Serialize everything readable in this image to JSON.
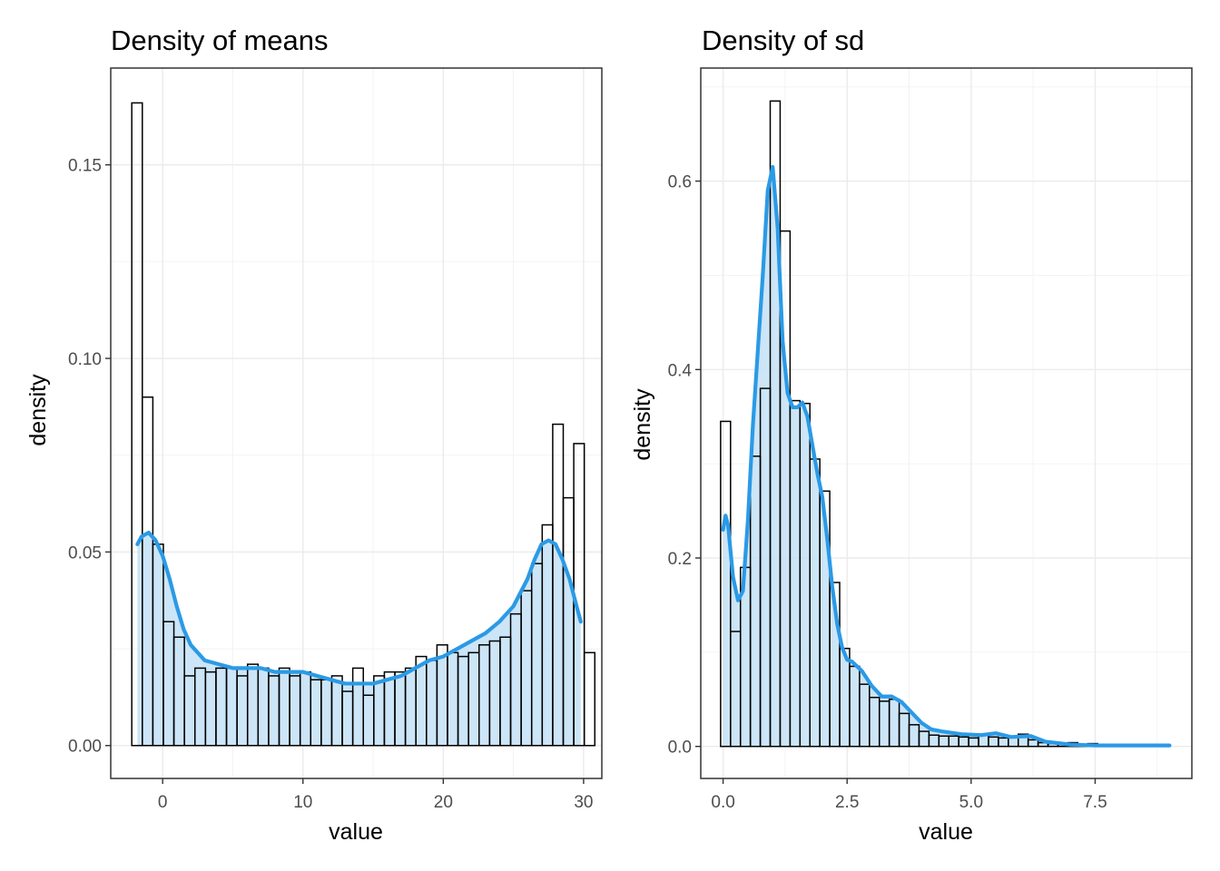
{
  "chart_data": [
    {
      "type": "bar",
      "title": "Density of means",
      "xlabel": "value",
      "ylabel": "density",
      "xlim": [
        -3.7,
        31.3
      ],
      "ylim": [
        -0.0085,
        0.175
      ],
      "x_ticks": [
        0,
        10,
        20,
        30
      ],
      "x_tick_labels": [
        "0",
        "10",
        "20",
        "30"
      ],
      "y_ticks": [
        0.0,
        0.05,
        0.1,
        0.15
      ],
      "y_tick_labels": [
        "0.00",
        "0.05",
        "0.10",
        "0.15"
      ],
      "grid": true,
      "colors": {
        "fill": "#c6e2f6",
        "line": "#2b9ae6",
        "bar_outline": "#000000"
      },
      "histogram": {
        "bins_start": -2.2,
        "bin_width": 0.75,
        "values": [
          0.166,
          0.09,
          0.052,
          0.032,
          0.028,
          0.018,
          0.02,
          0.019,
          0.02,
          0.02,
          0.018,
          0.021,
          0.02,
          0.018,
          0.02,
          0.018,
          0.019,
          0.017,
          0.017,
          0.018,
          0.014,
          0.02,
          0.013,
          0.018,
          0.019,
          0.019,
          0.02,
          0.023,
          0.022,
          0.026,
          0.024,
          0.023,
          0.024,
          0.026,
          0.027,
          0.028,
          0.034,
          0.04,
          0.047,
          0.057,
          0.083,
          0.064,
          0.078,
          0.024
        ]
      },
      "density": {
        "x": [
          -1.8,
          -1.5,
          -1.0,
          -0.5,
          0.0,
          0.5,
          1.0,
          1.5,
          2.0,
          3.0,
          4.0,
          5.0,
          6.0,
          7.0,
          8.0,
          9.0,
          10.0,
          11.0,
          12.0,
          13.0,
          14.0,
          15.0,
          16.0,
          17.0,
          18.0,
          19.0,
          20.0,
          21.0,
          22.0,
          23.0,
          24.0,
          25.0,
          26.0,
          26.5,
          27.0,
          27.5,
          28.0,
          28.5,
          29.0,
          29.5,
          29.8
        ],
        "y": [
          0.052,
          0.054,
          0.055,
          0.053,
          0.049,
          0.043,
          0.036,
          0.03,
          0.026,
          0.022,
          0.021,
          0.02,
          0.02,
          0.02,
          0.019,
          0.019,
          0.019,
          0.018,
          0.017,
          0.016,
          0.016,
          0.016,
          0.017,
          0.018,
          0.02,
          0.022,
          0.023,
          0.025,
          0.027,
          0.029,
          0.032,
          0.036,
          0.043,
          0.048,
          0.052,
          0.053,
          0.052,
          0.048,
          0.043,
          0.036,
          0.032
        ]
      }
    },
    {
      "type": "bar",
      "title": "Density of sd",
      "xlabel": "value",
      "ylabel": "density",
      "xlim": [
        -0.45,
        9.45
      ],
      "ylim": [
        -0.034,
        0.72
      ],
      "x_ticks": [
        0,
        2.5,
        5,
        7.5
      ],
      "x_tick_labels": [
        "0.0",
        "2.5",
        "5.0",
        "7.5"
      ],
      "y_ticks": [
        0.0,
        0.2,
        0.4,
        0.6
      ],
      "y_tick_labels": [
        "0.0",
        "0.2",
        "0.4",
        "0.6"
      ],
      "grid": true,
      "colors": {
        "fill": "#c6e2f6",
        "line": "#2b9ae6",
        "bar_outline": "#000000"
      },
      "histogram": {
        "bins_start": -0.05,
        "bin_width": 0.2,
        "values": [
          0.345,
          0.122,
          0.19,
          0.308,
          0.38,
          0.685,
          0.547,
          0.367,
          0.364,
          0.305,
          0.271,
          0.174,
          0.104,
          0.085,
          0.066,
          0.052,
          0.048,
          0.05,
          0.035,
          0.023,
          0.016,
          0.012,
          0.011,
          0.011,
          0.01,
          0.009,
          0.013,
          0.01,
          0.009,
          0.011,
          0.013,
          0.007,
          0.004,
          0.003,
          0.002,
          0.004,
          0.002,
          0.003,
          0.001,
          0.002,
          0.001,
          0.001,
          0.001,
          0.002,
          0.002
        ]
      },
      "density": {
        "x": [
          0.0,
          0.05,
          0.1,
          0.2,
          0.3,
          0.4,
          0.5,
          0.6,
          0.7,
          0.8,
          0.9,
          1.0,
          1.1,
          1.2,
          1.3,
          1.4,
          1.5,
          1.6,
          1.7,
          1.8,
          1.9,
          2.0,
          2.1,
          2.2,
          2.3,
          2.4,
          2.5,
          2.6,
          2.8,
          3.0,
          3.2,
          3.4,
          3.6,
          3.8,
          4.0,
          4.2,
          4.4,
          4.8,
          5.2,
          5.5,
          5.8,
          6.2,
          6.5,
          7.0,
          7.5,
          8.0,
          8.5,
          9.0
        ],
        "y": [
          0.23,
          0.245,
          0.235,
          0.18,
          0.155,
          0.165,
          0.24,
          0.34,
          0.42,
          0.5,
          0.59,
          0.615,
          0.55,
          0.43,
          0.375,
          0.36,
          0.36,
          0.365,
          0.35,
          0.32,
          0.29,
          0.265,
          0.22,
          0.17,
          0.13,
          0.105,
          0.092,
          0.09,
          0.08,
          0.064,
          0.053,
          0.053,
          0.047,
          0.036,
          0.025,
          0.018,
          0.016,
          0.013,
          0.012,
          0.014,
          0.01,
          0.011,
          0.005,
          0.002,
          0.001,
          0.001,
          0.001,
          0.001
        ]
      }
    }
  ]
}
